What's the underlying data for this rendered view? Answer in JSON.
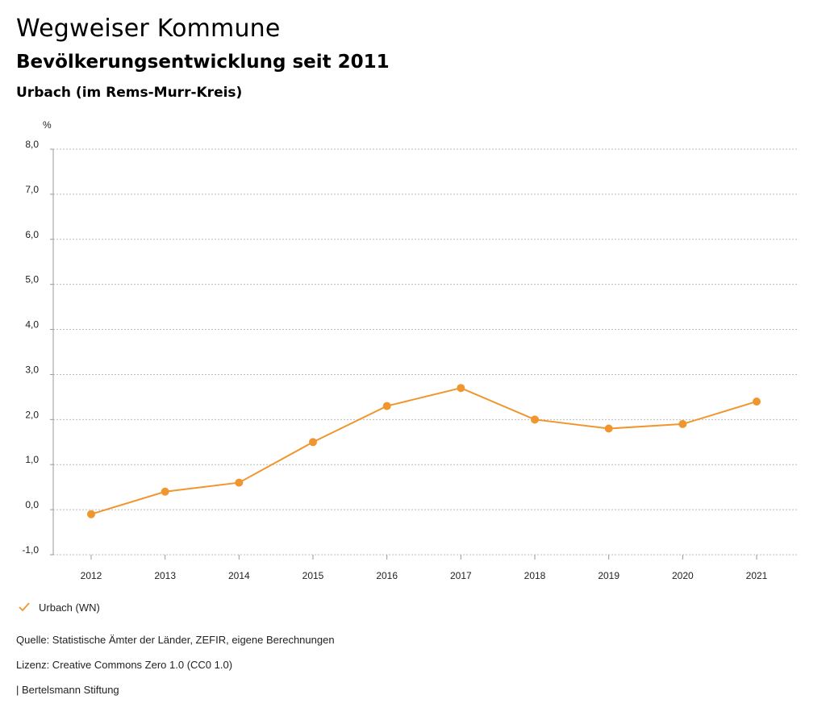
{
  "header": {
    "title": "Wegweiser Kommune",
    "subtitle": "Bevölkerungsentwicklung seit 2011",
    "region": "Urbach (im Rems-Murr-Kreis)"
  },
  "footer": {
    "source": "Quelle: Statistische Ämter der Länder, ZEFIR, eigene Berechnungen",
    "license": "Lizenz: Creative Commons Zero 1.0 (CC0 1.0)",
    "brand": "| Bertelsmann Stiftung"
  },
  "legend": {
    "label": "Urbach (WN)",
    "icon": "check-icon"
  },
  "colors": {
    "series": "#f0962e",
    "grid": "#bbbbbb",
    "text": "#222222"
  },
  "chart_data": {
    "type": "line",
    "title": "Bevölkerungsentwicklung seit 2011",
    "ylabel": "%",
    "xlabel": "",
    "x": [
      2012,
      2013,
      2014,
      2015,
      2016,
      2017,
      2018,
      2019,
      2020,
      2021
    ],
    "ylim": [
      -1.0,
      8.0
    ],
    "yticks": [
      "-1,0",
      "0,0",
      "1,0",
      "2,0",
      "3,0",
      "4,0",
      "5,0",
      "6,0",
      "7,0",
      "8,0"
    ],
    "grid": true,
    "legend_position": "bottom-left",
    "series": [
      {
        "name": "Urbach (WN)",
        "values": [
          -0.1,
          0.4,
          0.6,
          1.5,
          2.3,
          2.7,
          2.0,
          1.8,
          1.9,
          2.4
        ]
      }
    ]
  }
}
